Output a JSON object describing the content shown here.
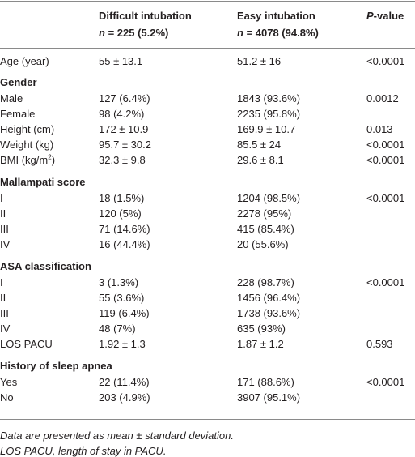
{
  "header": {
    "columns": [
      {
        "title": "Difficult intubation",
        "count": [
          "n",
          " = 225 (5.2%)"
        ]
      },
      {
        "title": "Easy intubation",
        "count": [
          "n",
          " = 4078 (94.8%)"
        ]
      },
      {
        "title": [
          "P",
          "-value"
        ]
      }
    ]
  },
  "table": {
    "rows": [
      {
        "label": "Age (year)",
        "cells": [
          "55 ± 13.1",
          "51.2 ± 16",
          "<0.0001"
        ]
      },
      {
        "heading": "Gender"
      },
      {
        "label": "Male",
        "cells": [
          "127 (6.4%)",
          "1843 (93.6%)",
          "0.0012"
        ]
      },
      {
        "label": "Female",
        "cells": [
          "98 (4.2%)",
          "2235 (95.8%)"
        ]
      },
      {
        "label": "Height (cm)",
        "cells": [
          "172 ± 10.9",
          "169.9 ± 10.7",
          "0.013"
        ]
      },
      {
        "label": "Weight (kg)",
        "cells": [
          "95.7 ± 30.2",
          "85.5 ± 24",
          "<0.0001"
        ]
      },
      {
        "label": [
          "BMI (kg/m",
          "2",
          ")"
        ],
        "cells": [
          "32.3 ± 9.8",
          "29.6 ± 8.1",
          "<0.0001"
        ]
      },
      {
        "heading": "Mallampati score"
      },
      {
        "label": "I",
        "cells": [
          "18 (1.5%)",
          "1204 (98.5%)",
          "<0.0001"
        ]
      },
      {
        "label": "II",
        "cells": [
          "120 (5%)",
          "2278 (95%)"
        ]
      },
      {
        "label": "III",
        "cells": [
          "71 (14.6%)",
          "415 (85.4%)"
        ]
      },
      {
        "label": "IV",
        "cells": [
          "16 (44.4%)",
          "20 (55.6%)"
        ]
      },
      {
        "heading": "ASA classification"
      },
      {
        "label": "I",
        "cells": [
          "3 (1.3%)",
          "228 (98.7%)",
          "<0.0001"
        ]
      },
      {
        "label": "II",
        "cells": [
          "55 (3.6%)",
          "1456 (96.4%)"
        ]
      },
      {
        "label": "III",
        "cells": [
          "119 (6.4%)",
          "1738 (93.6%)"
        ]
      },
      {
        "label": "IV",
        "cells": [
          "48 (7%)",
          "635 (93%)"
        ]
      },
      {
        "label": "LOS PACU",
        "cells": [
          "1.92 ± 1.3",
          "1.87 ± 1.2",
          "0.593"
        ]
      },
      {
        "heading": "History of sleep apnea"
      },
      {
        "label": "Yes",
        "cells": [
          "22 (11.4%)",
          "171 (88.6%)",
          "<0.0001"
        ]
      },
      {
        "label": "No",
        "cells": [
          "203 (4.9%)",
          "3907 (95.1%)"
        ]
      }
    ]
  },
  "footnotes": [
    "Data are presented as mean ± standard deviation.",
    "LOS PACU, length of stay in PACU."
  ]
}
